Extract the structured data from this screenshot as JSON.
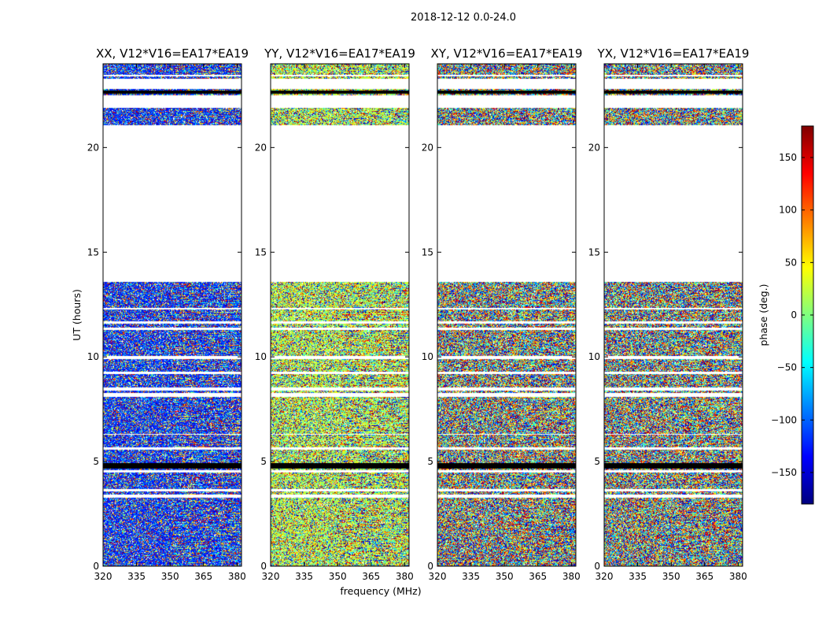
{
  "chart_data": {
    "type": "heatmap",
    "suptitle": "2018-12-12 0.0-24.0",
    "xlabel": "frequency (MHz)",
    "ylabel": "UT (hours)",
    "xlim": [
      320,
      382
    ],
    "ylim": [
      0,
      24
    ],
    "xticks": [
      320,
      335,
      350,
      365,
      380
    ],
    "yticks": [
      0,
      5,
      10,
      15,
      20
    ],
    "colorbar": {
      "label": "phase (deg.)",
      "range": [
        -180,
        180
      ],
      "ticks": [
        150,
        100,
        50,
        0,
        -50,
        -100,
        -150
      ],
      "tick_labels": [
        "150",
        "100",
        "50",
        "0",
        "−50",
        "−100",
        "−150"
      ],
      "colormap": "jet",
      "colors": [
        "#00007f",
        "#0000ff",
        "#007fff",
        "#00ffff",
        "#7fff7f",
        "#ffff00",
        "#ff7f00",
        "#ff0000",
        "#7f0000"
      ]
    },
    "data_bands_hours": [
      [
        0.0,
        3.3
      ],
      [
        3.45,
        3.6
      ],
      [
        3.7,
        4.5
      ],
      [
        4.6,
        5.6
      ],
      [
        5.7,
        6.3
      ],
      [
        6.35,
        8.1
      ],
      [
        8.3,
        8.4
      ],
      [
        8.55,
        9.2
      ],
      [
        9.3,
        9.9
      ],
      [
        10.05,
        11.3
      ],
      [
        11.4,
        11.6
      ],
      [
        11.7,
        12.3
      ],
      [
        12.35,
        13.6
      ],
      [
        21.1,
        21.9
      ],
      [
        22.5,
        22.8
      ],
      [
        23.3,
        23.4
      ],
      [
        23.5,
        24.0
      ]
    ],
    "black_stripes_hours": [
      [
        4.7,
        4.95
      ],
      [
        22.6,
        22.75
      ]
    ],
    "panels": [
      {
        "title": "XX, V12*V16=EA17*EA19",
        "polarization": "XX",
        "bias_phase": -120,
        "bias_weight": 0.55
      },
      {
        "title": "YY, V12*V16=EA17*EA19",
        "polarization": "YY",
        "bias_phase": 20,
        "bias_weight": 0.45
      },
      {
        "title": "XY, V12*V16=EA17*EA19",
        "polarization": "XY",
        "bias_phase": 0,
        "bias_weight": 0.0
      },
      {
        "title": "YX, V12*V16=EA17*EA19",
        "polarization": "YX",
        "bias_phase": 0,
        "bias_weight": 0.0
      }
    ]
  }
}
